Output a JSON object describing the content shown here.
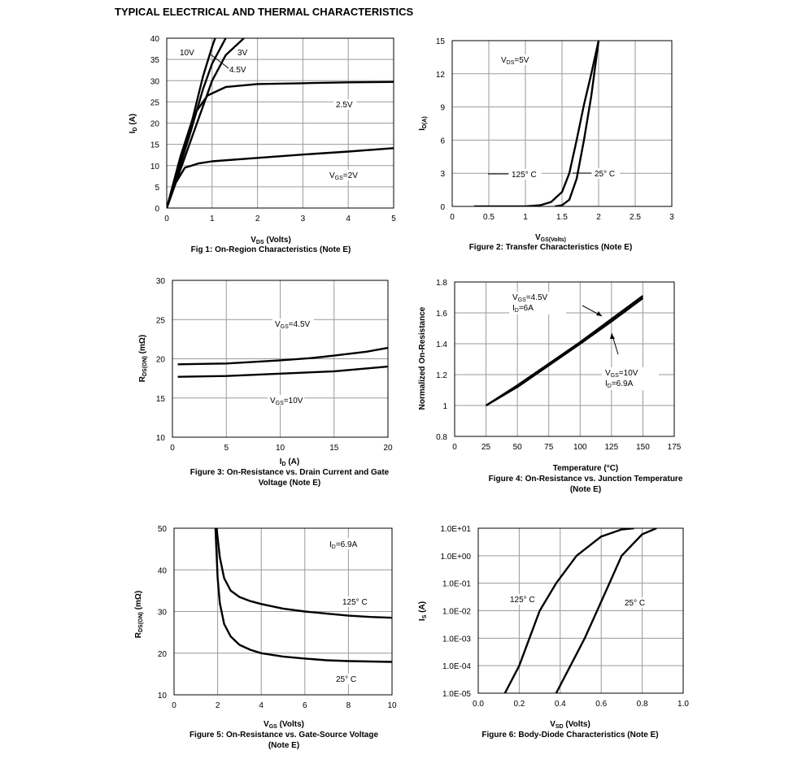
{
  "page": {
    "title": "TYPICAL ELECTRICAL AND THERMAL CHARACTERISTICS"
  },
  "chart_data": [
    {
      "type": "line",
      "caption": "Fig 1: On-Region Characteristics (Note E)",
      "xlabel": "V_DS (Volts)",
      "ylabel": "I_D (A)",
      "xlim": [
        0,
        5
      ],
      "ylim": [
        0,
        40
      ],
      "xticks": [
        "0",
        "1",
        "2",
        "3",
        "4",
        "5"
      ],
      "yticks": [
        "0",
        "5",
        "10",
        "15",
        "20",
        "25",
        "30",
        "35",
        "40"
      ],
      "grid": true,
      "series": [
        {
          "name": "10V",
          "points": [
            [
              0,
              0
            ],
            [
              0.5,
              18
            ],
            [
              0.8,
              31
            ],
            [
              1.0,
              38
            ],
            [
              1.1,
              41
            ]
          ]
        },
        {
          "name": "4.5V",
          "points": [
            [
              0,
              0
            ],
            [
              0.5,
              17
            ],
            [
              0.8,
              28
            ],
            [
              1.0,
              34
            ],
            [
              1.3,
              40
            ]
          ]
        },
        {
          "name": "3V",
          "points": [
            [
              0,
              0
            ],
            [
              0.5,
              15
            ],
            [
              1.0,
              30
            ],
            [
              1.3,
              36
            ],
            [
              1.7,
              40
            ]
          ]
        },
        {
          "name": "2.5V",
          "points": [
            [
              0,
              0
            ],
            [
              0.3,
              12
            ],
            [
              0.6,
              22
            ],
            [
              0.9,
              26.5
            ],
            [
              1.3,
              28.5
            ],
            [
              2,
              29.2
            ],
            [
              3,
              29.4
            ],
            [
              4,
              29.6
            ],
            [
              5,
              29.7
            ]
          ]
        },
        {
          "name": "V_GS=2V",
          "points": [
            [
              0,
              0
            ],
            [
              0.2,
              6
            ],
            [
              0.4,
              9.5
            ],
            [
              0.7,
              10.5
            ],
            [
              1,
              11
            ],
            [
              2,
              11.8
            ],
            [
              3,
              12.6
            ],
            [
              4,
              13.3
            ],
            [
              5,
              14.1
            ]
          ]
        }
      ]
    },
    {
      "type": "line",
      "caption": "Figure 2: Transfer Characteristics (Note E)",
      "xlabel": "V_GS(Volts)",
      "ylabel": "I_D(A)",
      "xlim": [
        0,
        3
      ],
      "ylim": [
        0,
        15
      ],
      "xticks": [
        "0",
        "0.5",
        "1",
        "1.5",
        "2",
        "2.5",
        "3"
      ],
      "yticks": [
        "0",
        "3",
        "6",
        "9",
        "12",
        "15"
      ],
      "grid": true,
      "annotation": "V_DS=5V",
      "series": [
        {
          "name": "125° C",
          "points": [
            [
              0.3,
              0
            ],
            [
              1.0,
              0
            ],
            [
              1.2,
              0.1
            ],
            [
              1.35,
              0.4
            ],
            [
              1.5,
              1.3
            ],
            [
              1.6,
              3
            ],
            [
              1.7,
              6
            ],
            [
              1.8,
              9.2
            ],
            [
              1.9,
              12
            ],
            [
              2.0,
              15
            ]
          ]
        },
        {
          "name": "25° C",
          "points": [
            [
              1.4,
              0
            ],
            [
              1.5,
              0.1
            ],
            [
              1.6,
              0.6
            ],
            [
              1.7,
              2.5
            ],
            [
              1.8,
              6
            ],
            [
              1.9,
              10
            ],
            [
              2.0,
              15
            ]
          ]
        }
      ]
    },
    {
      "type": "line",
      "caption": "Figure 3: On-Resistance vs. Drain Current and Gate Voltage (Note E)",
      "xlabel": "I_D (A)",
      "ylabel": "R_DS(ON) (mΩ)",
      "xlim": [
        0,
        20
      ],
      "ylim": [
        10,
        30
      ],
      "xticks": [
        "0",
        "5",
        "10",
        "15",
        "20"
      ],
      "yticks": [
        "10",
        "15",
        "20",
        "25",
        "30"
      ],
      "grid": true,
      "series": [
        {
          "name": "V_GS=4.5V",
          "points": [
            [
              0.5,
              19.3
            ],
            [
              5,
              19.4
            ],
            [
              10,
              19.8
            ],
            [
              13,
              20.1
            ],
            [
              15,
              20.4
            ],
            [
              18,
              20.9
            ],
            [
              20,
              21.4
            ]
          ]
        },
        {
          "name": "V_GS=10V",
          "points": [
            [
              0.5,
              17.7
            ],
            [
              5,
              17.8
            ],
            [
              10,
              18.1
            ],
            [
              15,
              18.4
            ],
            [
              20,
              19.0
            ]
          ]
        }
      ]
    },
    {
      "type": "line",
      "caption": "Figure 4: On-Resistance vs. Junction Temperature (Note E)",
      "xlabel": "Temperature (°C)",
      "ylabel": "Normalized On-Resistance",
      "xlim": [
        0,
        175
      ],
      "ylim": [
        0.8,
        1.8
      ],
      "xticks": [
        "0",
        "25",
        "50",
        "75",
        "100",
        "125",
        "150",
        "175"
      ],
      "yticks": [
        "0.8",
        "1",
        "1.2",
        "1.4",
        "1.6",
        "1.8"
      ],
      "grid": true,
      "series": [
        {
          "name": "V_GS=4.5V I_D=6A",
          "points": [
            [
              25,
              1.0
            ],
            [
              50,
              1.13
            ],
            [
              75,
              1.27
            ],
            [
              100,
              1.41
            ],
            [
              125,
              1.56
            ],
            [
              150,
              1.71
            ]
          ]
        },
        {
          "name": "V_GS=10V I_D=6.9A",
          "points": [
            [
              25,
              1.0
            ],
            [
              50,
              1.12
            ],
            [
              75,
              1.26
            ],
            [
              100,
              1.4
            ],
            [
              125,
              1.545
            ],
            [
              150,
              1.695
            ]
          ]
        }
      ]
    },
    {
      "type": "line",
      "caption": "Figure 5: On-Resistance vs. Gate-Source Voltage (Note E)",
      "xlabel": "V_GS (Volts)",
      "ylabel": "R_DS(ON) (mΩ)",
      "xlim": [
        0,
        10
      ],
      "ylim": [
        10,
        50
      ],
      "xticks": [
        "0",
        "2",
        "4",
        "6",
        "8",
        "10"
      ],
      "yticks": [
        "10",
        "20",
        "30",
        "40",
        "50"
      ],
      "grid": true,
      "annotation": "I_D=6.9A",
      "series": [
        {
          "name": "125° C",
          "points": [
            [
              1.95,
              50
            ],
            [
              2.1,
              43
            ],
            [
              2.3,
              38
            ],
            [
              2.6,
              35
            ],
            [
              3,
              33.5
            ],
            [
              3.5,
              32.5
            ],
            [
              4,
              31.8
            ],
            [
              5,
              30.7
            ],
            [
              6,
              30
            ],
            [
              7,
              29.5
            ],
            [
              8,
              29
            ],
            [
              9,
              28.7
            ],
            [
              10,
              28.5
            ]
          ]
        },
        {
          "name": "25° C",
          "points": [
            [
              1.9,
              50
            ],
            [
              2.0,
              38
            ],
            [
              2.1,
              32
            ],
            [
              2.3,
              27
            ],
            [
              2.6,
              24
            ],
            [
              3,
              22
            ],
            [
              3.5,
              20.8
            ],
            [
              4,
              20
            ],
            [
              5,
              19.2
            ],
            [
              6,
              18.7
            ],
            [
              7,
              18.3
            ],
            [
              8,
              18.1
            ],
            [
              9,
              18
            ],
            [
              10,
              17.9
            ]
          ]
        }
      ]
    },
    {
      "type": "line",
      "caption": "Figure 6: Body-Diode Characteristics (Note E)",
      "xlabel": "V_SD (Volts)",
      "ylabel": "I_S (A)",
      "xlim": [
        0,
        1
      ],
      "ylim": [
        1e-05,
        10
      ],
      "yscale": "log",
      "xticks": [
        "0.0",
        "0.2",
        "0.4",
        "0.6",
        "0.8",
        "1.0"
      ],
      "yticks": [
        "1.0E-05",
        "1.0E-04",
        "1.0E-03",
        "1.0E-02",
        "1.0E-01",
        "1.0E+00",
        "1.0E+01"
      ],
      "grid": true,
      "series": [
        {
          "name": "125° C",
          "points": [
            [
              0.13,
              1e-05
            ],
            [
              0.2,
              0.0001
            ],
            [
              0.3,
              0.01
            ],
            [
              0.38,
              0.1
            ],
            [
              0.48,
              1
            ],
            [
              0.6,
              5
            ],
            [
              0.7,
              9
            ],
            [
              0.76,
              10
            ]
          ]
        },
        {
          "name": "25° C",
          "points": [
            [
              0.38,
              1e-05
            ],
            [
              0.45,
              0.0001
            ],
            [
              0.52,
              0.001
            ],
            [
              0.58,
              0.01
            ],
            [
              0.64,
              0.1
            ],
            [
              0.7,
              1
            ],
            [
              0.8,
              6
            ],
            [
              0.87,
              10
            ]
          ]
        }
      ]
    }
  ]
}
